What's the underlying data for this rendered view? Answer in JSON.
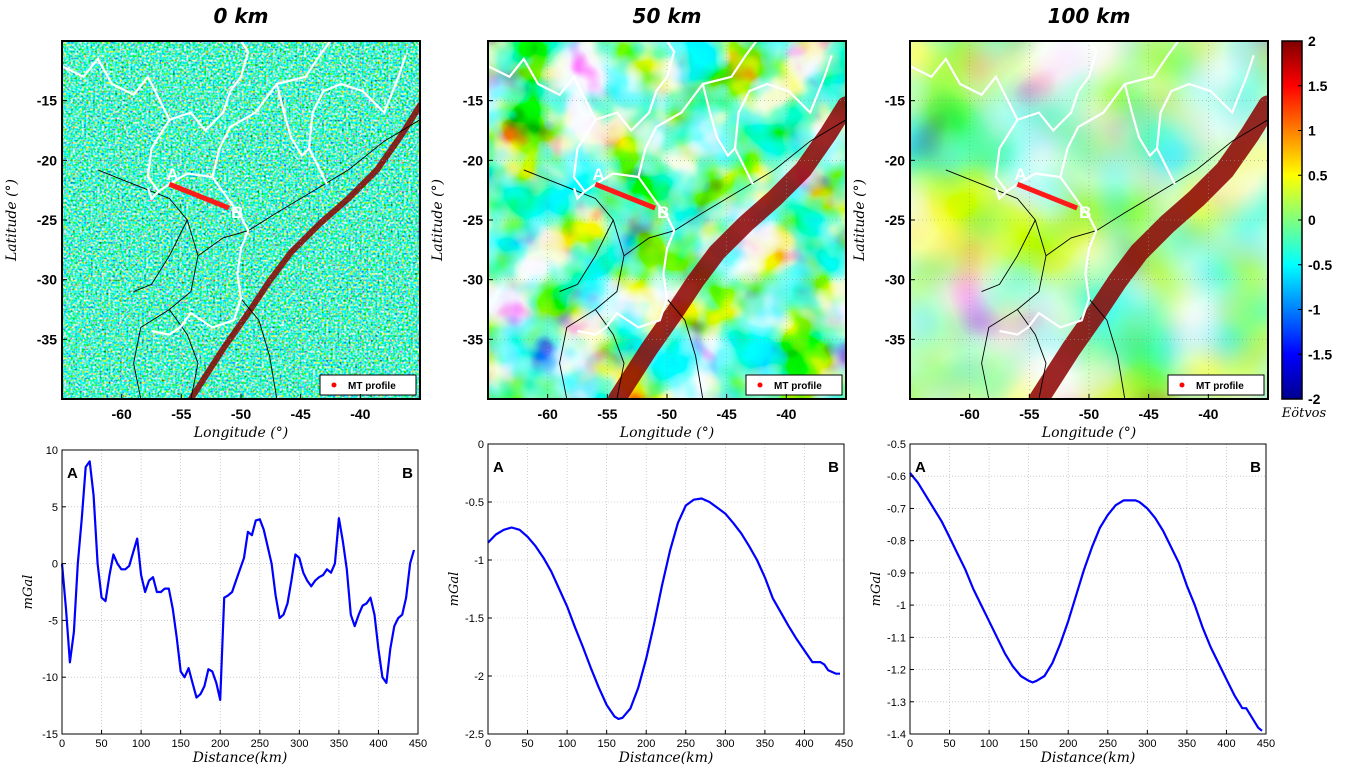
{
  "chart_data": [
    {
      "type": "heatmap",
      "title": "0 km",
      "xlabel": "Longitude (°)",
      "ylabel": "Latitude (°)",
      "xticks": [
        -60,
        -55,
        -50,
        -45,
        -40
      ],
      "yticks": [
        -15,
        -20,
        -25,
        -30,
        -35
      ],
      "xlim": [
        -65,
        -35
      ],
      "ylim": [
        -40,
        -10
      ],
      "profile": {
        "a": {
          "label": "A",
          "lon": -56,
          "lat": -22
        },
        "b": {
          "label": "B",
          "lon": -51,
          "lat": -24
        }
      },
      "legend": {
        "label": "MT profile",
        "position": "bottom-right",
        "marker_color": "#ff0000"
      },
      "texture": "noisy"
    },
    {
      "type": "heatmap",
      "title": "50 km",
      "xlabel": "Longitude (°)",
      "ylabel": "Latitude (°)",
      "xticks": [
        -60,
        -55,
        -50,
        -45,
        -40
      ],
      "yticks": [
        -15,
        -20,
        -25,
        -30,
        -35
      ],
      "xlim": [
        -65,
        -35
      ],
      "ylim": [
        -40,
        -10
      ],
      "profile": {
        "a": {
          "label": "A",
          "lon": -56,
          "lat": -22
        },
        "b": {
          "label": "B",
          "lon": -51,
          "lat": -24
        }
      },
      "legend": {
        "label": "MT profile",
        "position": "bottom-right",
        "marker_color": "#ff0000"
      },
      "texture": "smooth"
    },
    {
      "type": "heatmap",
      "title": "100 km",
      "xlabel": "Longitude (°)",
      "ylabel": "Latitude (°)",
      "xticks": [
        -60,
        -55,
        -50,
        -45,
        -40
      ],
      "yticks": [
        -15,
        -20,
        -25,
        -30,
        -35
      ],
      "xlim": [
        -65,
        -35
      ],
      "ylim": [
        -40,
        -10
      ],
      "profile": {
        "a": {
          "label": "A",
          "lon": -56,
          "lat": -22
        },
        "b": {
          "label": "B",
          "lon": -51,
          "lat": -24
        }
      },
      "legend": {
        "label": "MT profile",
        "position": "bottom-right",
        "marker_color": "#ff0000"
      },
      "texture": "smoother",
      "colorbar": {
        "ticks": [
          "2",
          "1.5",
          "1",
          "0.5",
          "0",
          "-0.5",
          "-1",
          "-1.5",
          "-2"
        ],
        "range": [
          -2,
          2
        ],
        "unit": "Eötvos",
        "colormap": "jet"
      }
    },
    {
      "type": "line",
      "xlabel": "Distance(km)",
      "ylabel": "mGal",
      "xlim": [
        0,
        450
      ],
      "ylim": [
        -15,
        10
      ],
      "xticks": [
        0,
        50,
        100,
        150,
        200,
        250,
        300,
        350,
        400,
        450
      ],
      "yticks": [
        10,
        5,
        0,
        -5,
        -10,
        -15
      ],
      "grid": true,
      "start_label": "A",
      "end_label": "B",
      "series": [
        {
          "color": "#0000ff",
          "x": [
            0,
            5,
            10,
            15,
            20,
            25,
            30,
            35,
            40,
            45,
            50,
            55,
            60,
            65,
            70,
            75,
            80,
            85,
            90,
            95,
            100,
            105,
            110,
            115,
            120,
            125,
            130,
            135,
            140,
            145,
            150,
            155,
            160,
            165,
            170,
            175,
            180,
            185,
            190,
            195,
            200,
            205,
            210,
            215,
            220,
            225,
            230,
            235,
            240,
            245,
            250,
            255,
            260,
            265,
            270,
            275,
            280,
            285,
            290,
            295,
            300,
            305,
            310,
            315,
            320,
            325,
            330,
            335,
            340,
            345,
            350,
            355,
            360,
            365,
            370,
            375,
            380,
            385,
            390,
            395,
            400,
            405,
            410,
            415,
            420,
            425,
            430,
            435,
            440,
            445
          ],
          "y": [
            0,
            -4,
            -8.7,
            -6,
            0,
            4,
            8.5,
            9,
            6,
            0,
            -3,
            -3.3,
            -1,
            0.8,
            0,
            -0.5,
            -0.5,
            -0.2,
            1,
            2.2,
            -1,
            -2.5,
            -1.5,
            -1.2,
            -2.5,
            -2.5,
            -2.2,
            -2.2,
            -4,
            -6.5,
            -9.5,
            -10,
            -9.2,
            -10.5,
            -11.8,
            -11.5,
            -10.8,
            -9.3,
            -9.5,
            -10.5,
            -12,
            -3,
            -2.8,
            -2.5,
            -1.5,
            -0.5,
            0.5,
            2.8,
            2.5,
            3.8,
            3.9,
            3,
            1.5,
            0,
            -2.8,
            -4.8,
            -4.5,
            -3.5,
            -1.5,
            0.8,
            0.5,
            -0.8,
            -1.5,
            -2,
            -1.5,
            -1.2,
            -1,
            -0.5,
            -0.8,
            0,
            4,
            2,
            -0.5,
            -4.5,
            -5.5,
            -4.5,
            -3.7,
            -3.5,
            -3,
            -4.5,
            -7.5,
            -10,
            -10.5,
            -7.5,
            -5.5,
            -4.8,
            -4.5,
            -3,
            0,
            1.2
          ]
        }
      ]
    },
    {
      "type": "line",
      "xlabel": "Distance(km)",
      "ylabel": "mGal",
      "xlim": [
        0,
        450
      ],
      "ylim": [
        -2.5,
        0
      ],
      "xticks": [
        0,
        50,
        100,
        150,
        200,
        250,
        300,
        350,
        400,
        450
      ],
      "yticks": [
        "0",
        "-0.5",
        "-1",
        "-1.5",
        "-2",
        "-2.5"
      ],
      "grid": true,
      "start_label": "A",
      "end_label": "B",
      "series": [
        {
          "color": "#0000ff",
          "x": [
            0,
            10,
            20,
            30,
            40,
            50,
            60,
            70,
            80,
            90,
            100,
            110,
            120,
            130,
            140,
            150,
            160,
            165,
            170,
            180,
            190,
            200,
            210,
            220,
            230,
            240,
            250,
            260,
            270,
            280,
            290,
            300,
            310,
            320,
            330,
            340,
            350,
            360,
            370,
            380,
            390,
            400,
            410,
            420,
            425,
            430,
            440,
            445
          ],
          "y": [
            -0.85,
            -0.78,
            -0.74,
            -0.72,
            -0.74,
            -0.8,
            -0.88,
            -0.98,
            -1.1,
            -1.25,
            -1.4,
            -1.58,
            -1.75,
            -1.93,
            -2.1,
            -2.25,
            -2.35,
            -2.37,
            -2.36,
            -2.28,
            -2.1,
            -1.85,
            -1.55,
            -1.22,
            -0.92,
            -0.68,
            -0.53,
            -0.48,
            -0.47,
            -0.5,
            -0.55,
            -0.6,
            -0.68,
            -0.77,
            -0.88,
            -1.0,
            -1.15,
            -1.33,
            -1.45,
            -1.57,
            -1.68,
            -1.78,
            -1.88,
            -1.88,
            -1.9,
            -1.95,
            -1.98,
            -1.98
          ]
        }
      ]
    },
    {
      "type": "line",
      "xlabel": "Distance(km)",
      "ylabel": "mGal",
      "xlim": [
        0,
        450
      ],
      "ylim": [
        -1.4,
        -0.5
      ],
      "xticks": [
        0,
        50,
        100,
        150,
        200,
        250,
        300,
        350,
        400,
        450
      ],
      "yticks": [
        "-0.5",
        "-0.6",
        "-0.7",
        "-0.8",
        "-0.9",
        "-1",
        "-1.1",
        "-1.2",
        "-1.3",
        "-1.4"
      ],
      "grid": true,
      "start_label": "A",
      "end_label": "B",
      "series": [
        {
          "color": "#0000ff",
          "x": [
            0,
            10,
            20,
            30,
            40,
            50,
            60,
            70,
            80,
            90,
            100,
            110,
            120,
            130,
            140,
            150,
            155,
            160,
            170,
            180,
            190,
            200,
            210,
            220,
            230,
            240,
            250,
            260,
            270,
            280,
            285,
            290,
            300,
            310,
            320,
            330,
            340,
            350,
            360,
            370,
            380,
            390,
            400,
            410,
            420,
            425,
            430,
            440,
            445
          ],
          "y": [
            -0.59,
            -0.62,
            -0.66,
            -0.7,
            -0.74,
            -0.79,
            -0.84,
            -0.89,
            -0.95,
            -1.0,
            -1.05,
            -1.1,
            -1.15,
            -1.19,
            -1.22,
            -1.235,
            -1.24,
            -1.235,
            -1.22,
            -1.18,
            -1.12,
            -1.05,
            -0.97,
            -0.89,
            -0.82,
            -0.76,
            -0.72,
            -0.69,
            -0.675,
            -0.675,
            -0.675,
            -0.68,
            -0.7,
            -0.73,
            -0.77,
            -0.82,
            -0.87,
            -0.94,
            -1.0,
            -1.07,
            -1.13,
            -1.18,
            -1.23,
            -1.28,
            -1.32,
            -1.32,
            -1.34,
            -1.38,
            -1.39
          ]
        }
      ]
    }
  ]
}
